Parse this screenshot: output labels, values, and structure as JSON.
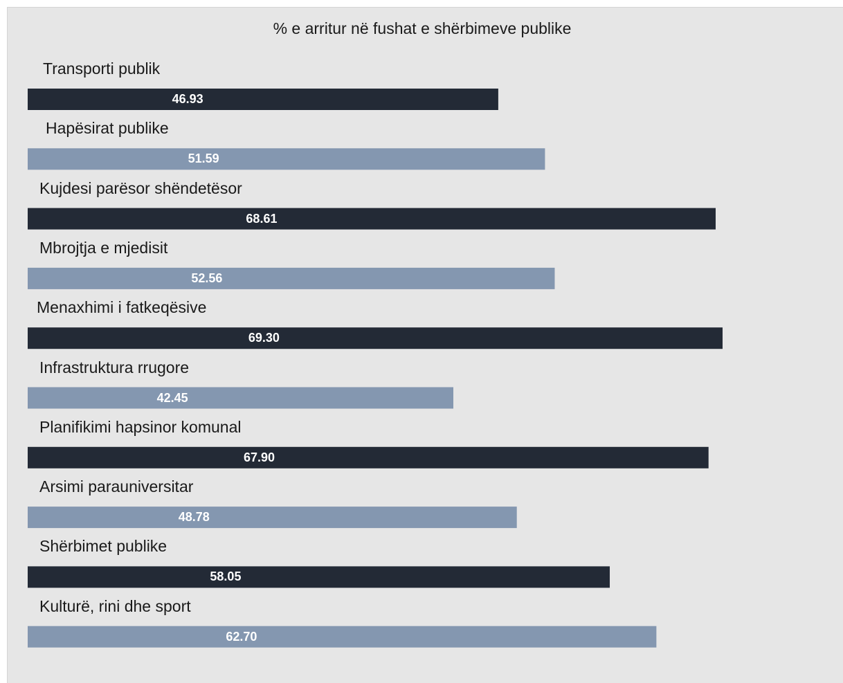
{
  "chart_data": {
    "type": "bar",
    "orientation": "horizontal",
    "title": "% e arritur në fushat e shërbimeve publike",
    "categories": [
      "Transporti publik",
      "Hapësirat publike",
      "Kujdesi parësor shëndetësor",
      "Mbrojtja e mjedisit",
      "Menaxhimi i fatkeqësive",
      "Infrastruktura rrugore",
      "Planifikimi hapsinor komunal",
      "Arsimi parauniversitar",
      "Shërbimet publike",
      "Kulturë, rini dhe sport"
    ],
    "values": [
      46.93,
      51.59,
      68.61,
      52.56,
      69.3,
      42.45,
      67.9,
      48.78,
      58.05,
      62.7
    ],
    "value_labels": [
      "46.93",
      "51.59",
      "68.61",
      "52.56",
      "69.30",
      "42.45",
      "67.90",
      "48.78",
      "58.05",
      "62.70"
    ],
    "xlim": [
      0,
      100
    ],
    "grid": false,
    "legend": "none",
    "colors": {
      "dark": "#232a36",
      "light": "#8497b0",
      "background": "#e6e6e6"
    }
  }
}
